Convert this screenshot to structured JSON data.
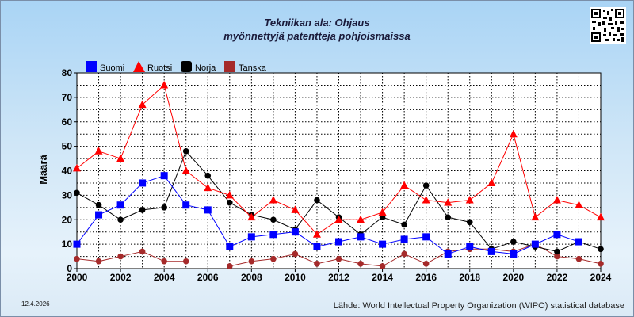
{
  "title_line1": "Tekniikan ala: Ohjaus",
  "title_line2": "myönnettyjä patentteja pohjoismaissa",
  "date": "12.4.2026",
  "source": "Lähde: World Intellectual Property Organization (WIPO) statistical database",
  "qr_icon": "qr-code-icon",
  "chart_data": {
    "type": "line",
    "xlabel": "",
    "ylabel": "Määrä",
    "xlim": [
      2000,
      2024
    ],
    "ylim": [
      0,
      80
    ],
    "yticks": [
      0,
      10,
      20,
      30,
      40,
      50,
      60,
      70,
      80
    ],
    "xticks": [
      2000,
      2002,
      2004,
      2006,
      2008,
      2010,
      2012,
      2014,
      2016,
      2018,
      2020,
      2022,
      2024
    ],
    "grid": true,
    "legend_position": "top-left",
    "x": [
      2000,
      2001,
      2002,
      2003,
      2004,
      2005,
      2006,
      2007,
      2008,
      2009,
      2010,
      2011,
      2012,
      2013,
      2014,
      2015,
      2016,
      2017,
      2018,
      2019,
      2020,
      2021,
      2022,
      2023,
      2024
    ],
    "series": [
      {
        "name": "Suomi",
        "color": "#0000ff",
        "marker": "square",
        "values": [
          10,
          22,
          26,
          35,
          38,
          26,
          24,
          9,
          13,
          14,
          15,
          9,
          11,
          13,
          10,
          12,
          13,
          6,
          9,
          7,
          6,
          10,
          14,
          11,
          null
        ]
      },
      {
        "name": "Ruotsi",
        "color": "#ff0000",
        "marker": "triangle",
        "values": [
          41,
          48,
          45,
          67,
          75,
          40,
          33,
          30,
          21,
          28,
          24,
          14,
          20,
          20,
          23,
          34,
          28,
          27,
          28,
          35,
          55,
          21,
          28,
          26,
          21
        ]
      },
      {
        "name": "Norja",
        "color": "#000000",
        "marker": "circle",
        "values": [
          31,
          26,
          20,
          24,
          25,
          48,
          38,
          27,
          22,
          20,
          16,
          28,
          21,
          14,
          21,
          18,
          34,
          21,
          19,
          8,
          11,
          9,
          7,
          11,
          8
        ]
      },
      {
        "name": "Tanska",
        "color": "#a52a2a",
        "marker": "circle",
        "values": [
          4,
          3,
          5,
          7,
          3,
          3,
          null,
          1,
          3,
          4,
          6,
          2,
          4,
          2,
          1,
          6,
          2,
          7,
          8,
          8,
          7,
          10,
          5,
          4,
          2
        ]
      }
    ]
  }
}
